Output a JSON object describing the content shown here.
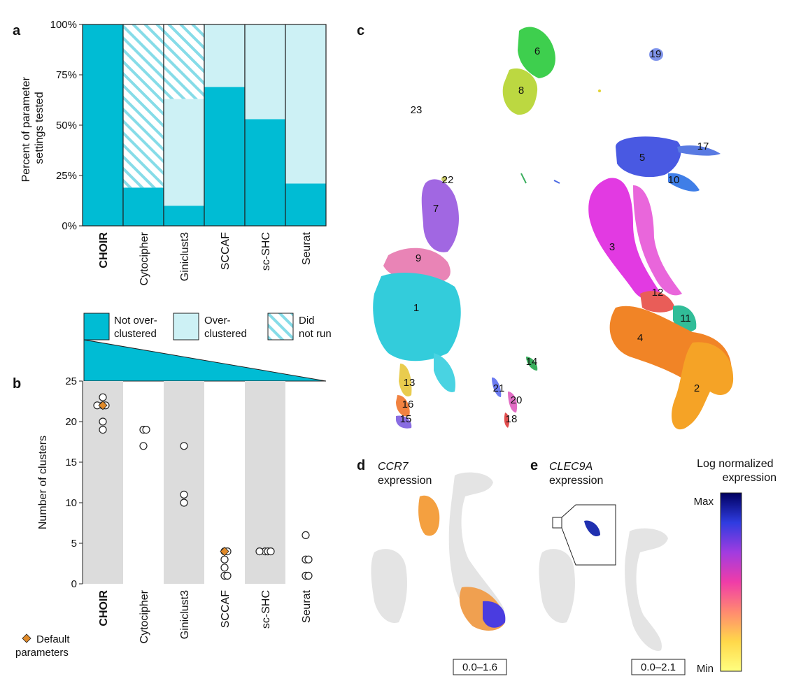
{
  "colors": {
    "not_over": "#00BCD4",
    "over": "#CDF1F5",
    "hatch": "#7DD7E4",
    "band": "#DCDCDC",
    "default_marker": "#E08A2A"
  },
  "chart_data": [
    {
      "panel": "a",
      "type": "bar",
      "stacked": true,
      "ylabel": "Percent of parameter settings tested",
      "ylabel_lines": [
        "Percent of parameter",
        "settings tested"
      ],
      "ylim": [
        0,
        100
      ],
      "yticks": [
        "0%",
        "25%",
        "50%",
        "75%",
        "100%"
      ],
      "categories": [
        "CHOIR",
        "Cytocipher",
        "Giniclust3",
        "SCCAF",
        "sc-SHC",
        "Seurat"
      ],
      "bold_category": "CHOIR",
      "series": [
        {
          "name": "Not over-clustered",
          "values": [
            100,
            19,
            10,
            69,
            53,
            21
          ]
        },
        {
          "name": "Over-clustered",
          "values": [
            0,
            0,
            53,
            31,
            47,
            79
          ]
        },
        {
          "name": "Did not run",
          "values": [
            0,
            81,
            37,
            0,
            0,
            0
          ]
        }
      ],
      "legend": [
        {
          "key": "not_over",
          "lines": [
            "Not over-",
            "clustered"
          ]
        },
        {
          "key": "over",
          "lines": [
            "Over-",
            "clustered"
          ]
        },
        {
          "key": "hatch",
          "lines": [
            "Did",
            "not run"
          ]
        }
      ]
    },
    {
      "panel": "b",
      "type": "scatter",
      "ylabel": "Number of clusters",
      "ylim": [
        0,
        25
      ],
      "yticks": [
        0,
        5,
        10,
        15,
        20,
        25
      ],
      "categories": [
        "CHOIR",
        "Cytocipher",
        "Giniclust3",
        "SCCAF",
        "sc-SHC",
        "Seurat"
      ],
      "points": [
        {
          "method": "CHOIR",
          "values": [
            23,
            22,
            22,
            22,
            20,
            19
          ]
        },
        {
          "method": "Cytocipher",
          "values": [
            19,
            19,
            17
          ]
        },
        {
          "method": "Giniclust3",
          "values": [
            17,
            11,
            10
          ]
        },
        {
          "method": "SCCAF",
          "values": [
            4,
            4,
            3,
            2,
            1,
            1
          ]
        },
        {
          "method": "sc-SHC",
          "values": [
            4,
            4,
            4,
            4
          ]
        },
        {
          "method": "Seurat",
          "values": [
            6,
            3,
            3,
            1,
            1
          ]
        }
      ],
      "defaults": [
        {
          "method": "CHOIR",
          "value": 22
        },
        {
          "method": "SCCAF",
          "value": 4
        }
      ],
      "default_legend": [
        "Default",
        "parameters"
      ]
    }
  ],
  "panel_c": {
    "label": "c",
    "cluster_labels": [
      "1",
      "2",
      "3",
      "4",
      "5",
      "6",
      "7",
      "8",
      "9",
      "10",
      "11",
      "12",
      "13",
      "14",
      "15",
      "16",
      "17",
      "18",
      "19",
      "20",
      "21",
      "22",
      "23"
    ]
  },
  "panel_d": {
    "label": "d",
    "gene": "CCR7",
    "subtitle": "expression",
    "range": "0.0–1.6"
  },
  "panel_e": {
    "label": "e",
    "gene": "CLEC9A",
    "subtitle": "expression",
    "range": "0.0–2.1"
  },
  "colorbar": {
    "title_lines": [
      "Log normalized",
      "expression"
    ],
    "max_label": "Max",
    "min_label": "Min",
    "stops": [
      "#000060",
      "#2F3CE0",
      "#A13CE0",
      "#F03CA8",
      "#FF8A70",
      "#FFD84A",
      "#FFFF80"
    ]
  }
}
